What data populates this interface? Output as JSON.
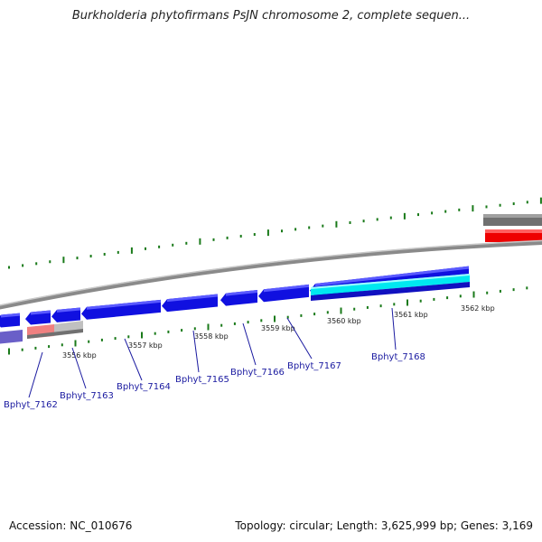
{
  "title": "Burkholderia phytofirmans PsJN chromosome 2, complete sequen...",
  "footer": {
    "accession": "Accession: NC_010676",
    "summary": "Topology: circular; Length: 3,625,999 bp; Genes: 3,169"
  },
  "colors": {
    "gene_blue": "#1010e0",
    "gene_blue_dark": "#0a0a90",
    "gene_purple": "#6a5fc8",
    "gene_pink": "#f08080",
    "gene_grey": "#c0c0c0",
    "gene_red": "#ee0000",
    "gene_dark_grey": "#707070",
    "cyan_band": "#00e8f0",
    "tick_green": "#1a7a1a",
    "backbone": "#888888"
  },
  "kbp_labels": [
    "3556 kbp",
    "3557 kbp",
    "3558 kbp",
    "3559 kbp",
    "3560 kbp",
    "3561 kbp",
    "3562 kbp"
  ],
  "genes": [
    {
      "name": "Bphyt_7162",
      "label": "Bphyt_7162"
    },
    {
      "name": "Bphyt_7163",
      "label": "Bphyt_7163"
    },
    {
      "name": "Bphyt_7164",
      "label": "Bphyt_7164"
    },
    {
      "name": "Bphyt_7165",
      "label": "Bphyt_7165"
    },
    {
      "name": "Bphyt_7166",
      "label": "Bphyt_7166"
    },
    {
      "name": "Bphyt_7167",
      "label": "Bphyt_7167"
    },
    {
      "name": "Bphyt_7168",
      "label": "Bphyt_7168"
    }
  ]
}
